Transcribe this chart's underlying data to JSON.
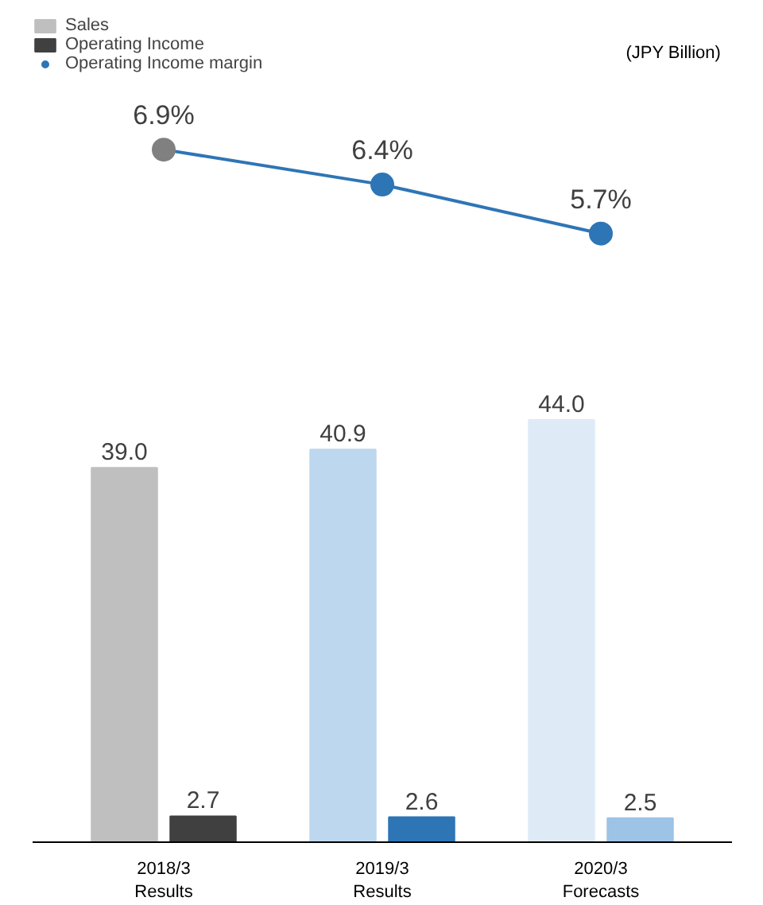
{
  "chart_data": {
    "type": "bar",
    "categories": [
      "2018/3\nResults",
      "2019/3\nResults",
      "2020/3\nForecasts"
    ],
    "ylim": [
      0,
      86
    ],
    "y2lim": [
      -3,
      8.8
    ],
    "tick_labels": "x",
    "grid": false,
    "legend": "top left",
    "data_labels": true,
    "annotations": [
      "(JPY Billion)"
    ],
    "series": [
      {
        "name": "Sales",
        "color": "#bfbfbf",
        "colors": [
          "#bfbfbf",
          "#bdd7ee",
          "#deebf7"
        ],
        "values": [
          39.0,
          40.9,
          44.0
        ],
        "value_labels": [
          "39.0",
          "40.9",
          "44.0"
        ]
      },
      {
        "name": "Operating Income",
        "color": "#404040",
        "colors": [
          "#404040",
          "#2e75b6",
          "#9dc3e6"
        ],
        "values": [
          2.7,
          2.6,
          2.5
        ],
        "value_labels": [
          "2.7",
          "2.6",
          "2.5"
        ]
      },
      {
        "name": "Operating Income margin",
        "type": "line",
        "axis": "y2",
        "marker": "circle",
        "color": "#2e75b6",
        "colors": [
          "#808080",
          "#2e75b6",
          "#2e75b6"
        ],
        "values": [
          6.9,
          6.4,
          5.7
        ],
        "value_labels": [
          "6.9%",
          "6.4%",
          "5.7%"
        ]
      }
    ]
  }
}
